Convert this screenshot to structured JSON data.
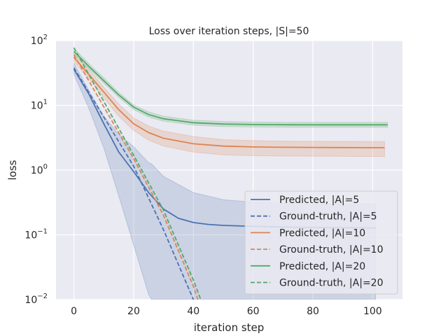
{
  "chart_data": {
    "type": "line",
    "title": "Loss over iteration steps, |S|=50",
    "xlabel": "iteration step",
    "ylabel": "loss",
    "xlim": [
      -6,
      110
    ],
    "ylim": [
      0.01,
      100
    ],
    "yscale": "log",
    "grid": true,
    "legend_position": "lower-right",
    "x_ticks": [
      {
        "value": 0,
        "label": "0"
      },
      {
        "value": 20,
        "label": "20"
      },
      {
        "value": 40,
        "label": "40"
      },
      {
        "value": 60,
        "label": "60"
      },
      {
        "value": 80,
        "label": "80"
      },
      {
        "value": 100,
        "label": "100"
      }
    ],
    "y_ticks": [
      {
        "value": 100,
        "base": "10",
        "exp": "2"
      },
      {
        "value": 10,
        "base": "10",
        "exp": "1"
      },
      {
        "value": 1,
        "base": "10",
        "exp": "0"
      },
      {
        "value": 0.1,
        "base": "10",
        "exp": "−1"
      },
      {
        "value": 0.01,
        "base": "10",
        "exp": "−2"
      }
    ],
    "series": [
      {
        "name": "Predicted, |A|=5",
        "style": "solid",
        "color": "#4c72b0",
        "x": [
          0,
          5,
          10,
          15,
          20,
          25,
          30,
          35,
          40,
          45,
          50,
          60,
          70,
          80,
          90,
          100,
          101
        ],
        "y": [
          36,
          15,
          5.2,
          1.9,
          0.95,
          0.45,
          0.25,
          0.18,
          0.155,
          0.145,
          0.14,
          0.135,
          0.132,
          0.13,
          0.129,
          0.128,
          0.128
        ],
        "band": {
          "x": [
            0,
            5,
            10,
            15,
            20,
            25,
            26,
            30,
            40,
            50,
            60,
            80,
            100,
            101
          ],
          "lower": [
            30,
            9,
            2.2,
            0.4,
            0.07,
            0.012,
            0.01,
            0.01,
            0.01,
            0.01,
            0.01,
            0.01,
            0.01,
            0.01
          ],
          "upper": [
            45,
            17,
            6.8,
            3.6,
            2.3,
            1.3,
            1.25,
            0.8,
            0.45,
            0.35,
            0.32,
            0.3,
            0.3,
            0.3
          ]
        }
      },
      {
        "name": "Ground-truth, |A|=5",
        "style": "dashed",
        "color": "#4c72b0",
        "x": [
          0,
          10,
          20,
          30,
          40,
          42
        ],
        "y": [
          38,
          6.6,
          1.15,
          0.12,
          0.01,
          0.0065
        ]
      },
      {
        "name": "Predicted, |A|=10",
        "style": "solid",
        "color": "#dd8452",
        "x": [
          0,
          5,
          10,
          15,
          20,
          25,
          30,
          40,
          50,
          60,
          70,
          80,
          90,
          100,
          104
        ],
        "y": [
          55,
          30,
          16,
          8.6,
          5.2,
          3.8,
          3.1,
          2.55,
          2.35,
          2.28,
          2.25,
          2.24,
          2.23,
          2.22,
          2.22
        ],
        "band": {
          "x": [
            0,
            5,
            10,
            15,
            20,
            25,
            30,
            40,
            50,
            60,
            70,
            80,
            90,
            100,
            104
          ],
          "lower": [
            47,
            26,
            13,
            6.8,
            4.1,
            2.9,
            2.35,
            1.9,
            1.72,
            1.67,
            1.65,
            1.64,
            1.63,
            1.62,
            1.62
          ],
          "upper": [
            63,
            36,
            19,
            10.5,
            6.4,
            4.8,
            4,
            3.3,
            2.95,
            2.85,
            2.8,
            2.78,
            2.77,
            2.76,
            2.76
          ]
        }
      },
      {
        "name": "Ground-truth, |A|=10",
        "style": "dashed",
        "color": "#dd8452",
        "x": [
          0,
          10,
          20,
          30,
          40,
          43
        ],
        "y": [
          60,
          9.5,
          1.5,
          0.2,
          0.016,
          0.0062
        ]
      },
      {
        "name": "Predicted, |A|=20",
        "style": "solid",
        "color": "#55a868",
        "x": [
          0,
          5,
          10,
          15,
          20,
          25,
          30,
          40,
          50,
          60,
          70,
          80,
          90,
          100,
          105
        ],
        "y": [
          68,
          40,
          24,
          14.5,
          9.4,
          7.2,
          6.2,
          5.4,
          5.15,
          5.05,
          5.02,
          5.0,
          5.0,
          5.0,
          5.0
        ],
        "band": {
          "x": [
            0,
            5,
            10,
            15,
            20,
            25,
            30,
            40,
            50,
            60,
            70,
            80,
            90,
            100,
            105
          ],
          "lower": [
            62,
            37,
            22,
            13.3,
            8.6,
            6.6,
            5.7,
            4.95,
            4.72,
            4.63,
            4.6,
            4.58,
            4.58,
            4.58,
            4.58
          ],
          "upper": [
            76,
            44,
            26.5,
            15.8,
            10.2,
            7.9,
            6.8,
            5.9,
            5.63,
            5.52,
            5.48,
            5.46,
            5.46,
            5.46,
            5.46
          ]
        }
      },
      {
        "name": "Ground-truth, |A|=20",
        "style": "dashed",
        "color": "#55a868",
        "x": [
          0,
          10,
          20,
          30,
          40,
          44
        ],
        "y": [
          78,
          11.5,
          1.7,
          0.24,
          0.02,
          0.0065
        ]
      }
    ]
  }
}
